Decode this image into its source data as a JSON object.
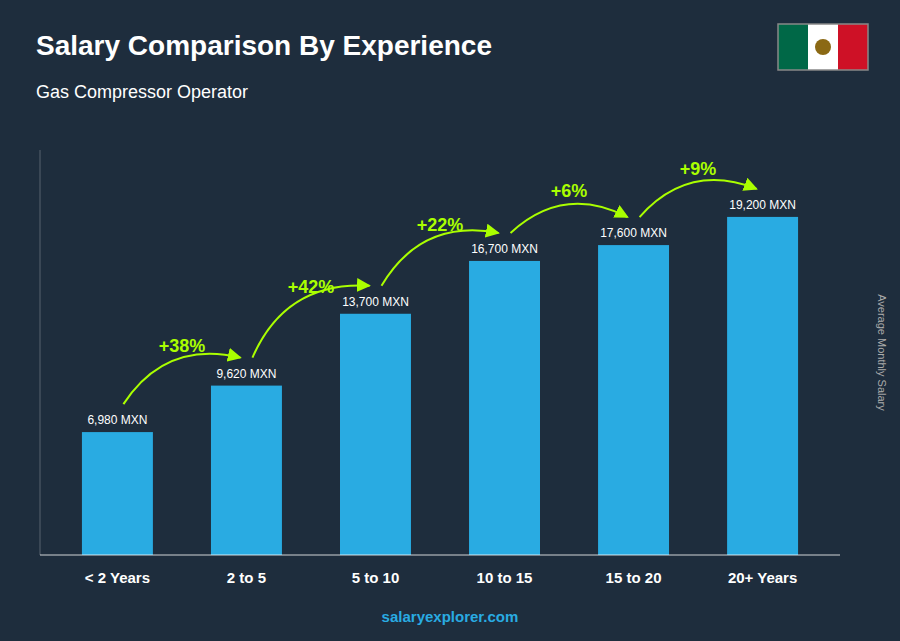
{
  "chart_data": {
    "type": "bar",
    "title": "Salary Comparison By Experience",
    "subtitle": "Gas Compressor Operator",
    "ylabel": "Average Monthly Salary",
    "footer": "salaryexplorer.com",
    "categories": [
      "< 2 Years",
      "2 to 5",
      "5 to 10",
      "10 to 15",
      "15 to 20",
      "20+ Years"
    ],
    "values": [
      6980,
      9620,
      13700,
      16700,
      17600,
      19200
    ],
    "value_labels": [
      "6,980 MXN",
      "9,620 MXN",
      "13,700 MXN",
      "16,700 MXN",
      "17,600 MXN",
      "19,200 MXN"
    ],
    "data_labels": true,
    "annotations": [
      "+38%",
      "+42%",
      "+22%",
      "+6%",
      "+9%"
    ],
    "color": "#29ABE2",
    "ylim": [
      0,
      23000
    ],
    "grid": false,
    "tick_labels": "x"
  }
}
